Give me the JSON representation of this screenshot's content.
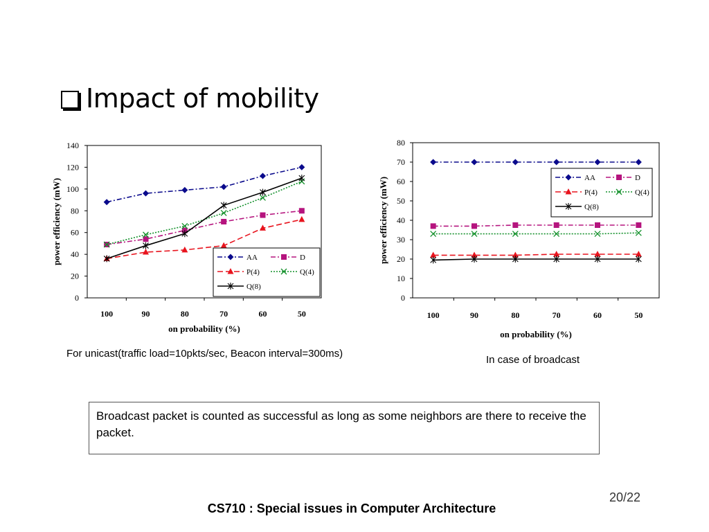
{
  "slide": {
    "title": "Impact of mobility",
    "caption_left": "For unicast(traffic load=10pkts/sec,  Beacon interval=300ms)",
    "caption_right": "In case of broadcast",
    "note": "Broadcast packet is counted as successful as long as some neighbors are there to receive the packet.",
    "footer": "CS710 : Special issues in Computer Architecture",
    "page": "20/22"
  },
  "chart_data": [
    {
      "type": "line",
      "xlabel": "on probability (%)",
      "ylabel": "power efficiency (mW)",
      "categories": [
        "100",
        "90",
        "80",
        "70",
        "60",
        "50"
      ],
      "ylim": [
        0,
        140
      ],
      "yticks": [
        0,
        20,
        40,
        60,
        80,
        100,
        120,
        140
      ],
      "legend_position": "bottom-right",
      "series": [
        {
          "name": "AA",
          "values": [
            88,
            96,
            99,
            102,
            112,
            120
          ],
          "color": "#0a0a8c",
          "marker": "diamond",
          "dash": "dashdot"
        },
        {
          "name": "D",
          "values": [
            49,
            54,
            62,
            70,
            76,
            80
          ],
          "color": "#b5147e",
          "marker": "square",
          "dash": "dashdot"
        },
        {
          "name": "P(4)",
          "values": [
            36,
            42,
            44,
            48,
            64,
            72
          ],
          "color": "#e8141e",
          "marker": "triangle",
          "dash": "dash"
        },
        {
          "name": "Q(4)",
          "values": [
            49,
            58,
            66,
            78,
            92,
            107
          ],
          "color": "#12902a",
          "marker": "x",
          "dash": "dot"
        },
        {
          "name": "Q(8)",
          "values": [
            36,
            48,
            59,
            85,
            97,
            110
          ],
          "color": "#000000",
          "marker": "star",
          "dash": "solid"
        }
      ]
    },
    {
      "type": "line",
      "xlabel": "on probability (%)",
      "ylabel": "power efficiency (mW)",
      "categories": [
        "100",
        "90",
        "80",
        "70",
        "60",
        "50"
      ],
      "ylim": [
        0,
        80
      ],
      "yticks": [
        0,
        10,
        20,
        30,
        40,
        50,
        60,
        70,
        80
      ],
      "legend_position": "top-right",
      "series": [
        {
          "name": "AA",
          "values": [
            70,
            70,
            70,
            70,
            70,
            70
          ],
          "color": "#0a0a8c",
          "marker": "diamond",
          "dash": "dashdot"
        },
        {
          "name": "D",
          "values": [
            37,
            37,
            37.5,
            37.5,
            37.5,
            37.5
          ],
          "color": "#b5147e",
          "marker": "square",
          "dash": "dashdot"
        },
        {
          "name": "P(4)",
          "values": [
            22,
            22,
            22,
            22.5,
            22.5,
            22.5
          ],
          "color": "#e8141e",
          "marker": "triangle",
          "dash": "dash"
        },
        {
          "name": "Q(4)",
          "values": [
            33,
            33,
            33,
            33,
            33,
            33.5
          ],
          "color": "#12902a",
          "marker": "x",
          "dash": "dot"
        },
        {
          "name": "Q(8)",
          "values": [
            19.5,
            20,
            20,
            20,
            20,
            20
          ],
          "color": "#000000",
          "marker": "star",
          "dash": "solid"
        }
      ]
    }
  ]
}
